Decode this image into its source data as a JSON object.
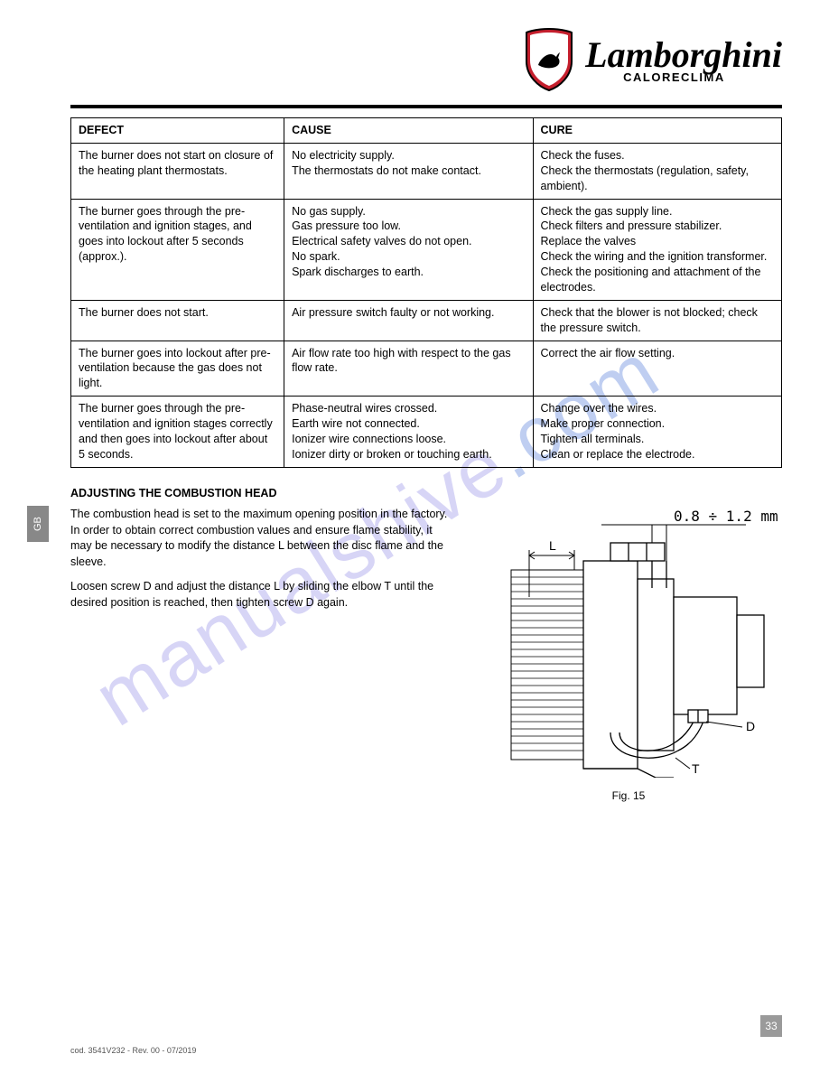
{
  "logo": {
    "script_text": "Lamborghini",
    "sub_text": "CALORECLIMA",
    "shield_fill": "#c51f2d",
    "shield_stroke": "#000000"
  },
  "watermark": {
    "text_main": "manualshive",
    "text_dot": ".",
    "text_tld": "com",
    "color_main": "#b7b2ee",
    "color_tld": "#8aa7e6"
  },
  "table": {
    "header": {
      "defect": "DEFECT",
      "cause": "CAUSE",
      "cure": "CURE"
    },
    "rows": [
      {
        "defect": "The burner does not start on closure of the heating plant thermostats.",
        "cause": "No electricity supply.\nThe thermostats do not make contact.",
        "cure": "Check the fuses.\nCheck the thermostats (regulation, safety, ambient)."
      },
      {
        "defect": "The burner goes through the pre-ventilation and ignition stages, and goes into lockout after 5 seconds (approx.).",
        "cause": "No gas supply.\nGas pressure too low.\nElectrical safety valves do not open.\nNo spark.\nSpark discharges to earth.",
        "cure": "Check the gas supply line.\nCheck filters and pressure stabilizer.\nReplace the valves\nCheck the wiring and the ignition transformer.\nCheck the positioning and attachment of the electrodes."
      },
      {
        "defect": "The burner does not start.",
        "cause": "Air pressure switch faulty or not working.",
        "cure": "Check that the blower is not blocked; check the pressure switch."
      },
      {
        "defect": "The burner goes into lockout after pre-ventilation because the gas does not light.",
        "cause": "Air flow rate too high with respect to the gas flow rate.",
        "cure": "Correct the air flow setting."
      },
      {
        "defect": "The burner goes through the pre-ventilation and ignition stages correctly and then goes into lockout after about 5 seconds.",
        "cause": "Phase-neutral wires crossed.\nEarth wire not connected.\nIonizer wire connections loose.\nIonizer dirty or broken or touching earth.",
        "cure": "Change over the wires.\nMake proper connection.\nTighten all terminals.\nClean or replace the electrode."
      }
    ]
  },
  "section": {
    "heading": "ADJUSTING THE COMBUSTION HEAD",
    "paragraph": "The combustion head is set to the maximum opening position in the factory. In order to obtain correct combustion values and ensure flame stability, it may be necessary to modify the distance L between the disc flame and the sleeve.",
    "instruction": "Loosen screw D and adjust the distance L by sliding the elbow T until the desired position is reached, then tighten screw D again."
  },
  "figure": {
    "dim_label": "0.8 ÷ 1.2 mm",
    "labels": {
      "L": "L",
      "T": "T",
      "D": "D"
    },
    "caption": "Fig. 15"
  },
  "page": {
    "number": "33",
    "lang_tab": "GB",
    "footer_code": "cod. 3541V232 - Rev. 00 - 07/2019"
  },
  "colors": {
    "rule": "#000000",
    "page_corner_bg": "#9a9a9a",
    "lang_tab_bg": "#888888",
    "text": "#000000",
    "footer_text": "#555555"
  },
  "typography": {
    "body_fontsize": 12.5,
    "logo_script_fontsize": 40,
    "logo_sub_fontsize": 13,
    "watermark_fontsize": 88
  }
}
